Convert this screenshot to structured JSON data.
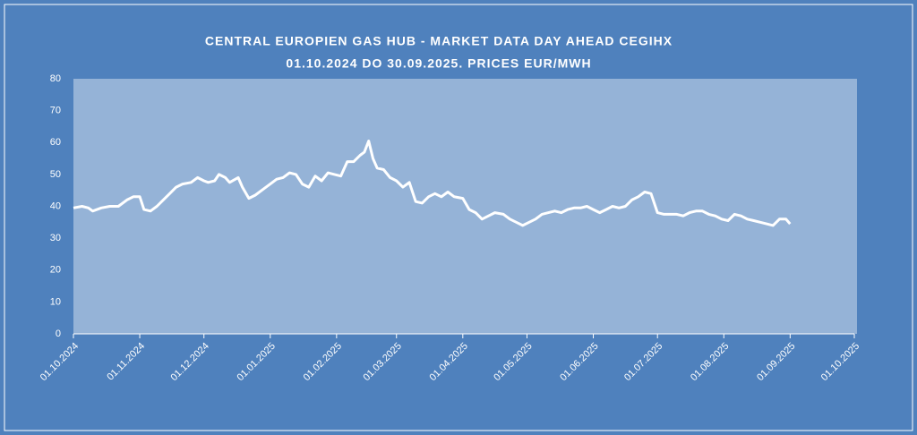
{
  "chart_data": {
    "type": "line",
    "title": "CENTRAL EUROPIEN GAS HUB - MARKET DATA DAY AHEAD CEGIHX",
    "subtitle": "01.10.2024 DO 30.09.2025. PRICES EUR/MWH",
    "series": [
      {
        "color": "#ffffff",
        "x": [
          "2024-10-01",
          "2024-10-05",
          "2024-10-08",
          "2024-10-10",
          "2024-10-14",
          "2024-10-18",
          "2024-10-22",
          "2024-10-26",
          "2024-10-29",
          "2024-11-01",
          "2024-11-03",
          "2024-11-06",
          "2024-11-09",
          "2024-11-12",
          "2024-11-15",
          "2024-11-18",
          "2024-11-21",
          "2024-11-25",
          "2024-11-28",
          "2024-12-01",
          "2024-12-03",
          "2024-12-06",
          "2024-12-08",
          "2024-12-11",
          "2024-12-13",
          "2024-12-17",
          "2024-12-19",
          "2024-12-22",
          "2024-12-25",
          "2024-12-28",
          "2025-01-01",
          "2025-01-04",
          "2025-01-07",
          "2025-01-10",
          "2025-01-13",
          "2025-01-16",
          "2025-01-19",
          "2025-01-22",
          "2025-01-25",
          "2025-01-28",
          "2025-01-31",
          "2025-02-03",
          "2025-02-06",
          "2025-02-09",
          "2025-02-12",
          "2025-02-14",
          "2025-02-16",
          "2025-02-18",
          "2025-02-20",
          "2025-02-23",
          "2025-02-26",
          "2025-03-01",
          "2025-03-04",
          "2025-03-07",
          "2025-03-10",
          "2025-03-13",
          "2025-03-16",
          "2025-03-19",
          "2025-03-22",
          "2025-03-25",
          "2025-03-28",
          "2025-04-01",
          "2025-04-04",
          "2025-04-07",
          "2025-04-10",
          "2025-04-13",
          "2025-04-16",
          "2025-04-20",
          "2025-04-23",
          "2025-04-26",
          "2025-04-29",
          "2025-05-02",
          "2025-05-05",
          "2025-05-08",
          "2025-05-11",
          "2025-05-14",
          "2025-05-17",
          "2025-05-20",
          "2025-05-23",
          "2025-05-26",
          "2025-05-29",
          "2025-06-01",
          "2025-06-04",
          "2025-06-07",
          "2025-06-10",
          "2025-06-13",
          "2025-06-16",
          "2025-06-19",
          "2025-06-22",
          "2025-06-25",
          "2025-06-28",
          "2025-07-01",
          "2025-07-04",
          "2025-07-07",
          "2025-07-10",
          "2025-07-13",
          "2025-07-16",
          "2025-07-19",
          "2025-07-22",
          "2025-07-25",
          "2025-07-28",
          "2025-07-31",
          "2025-08-03",
          "2025-08-06",
          "2025-08-09",
          "2025-08-12",
          "2025-08-15",
          "2025-08-18",
          "2025-08-21",
          "2025-08-24",
          "2025-08-27",
          "2025-08-30",
          "2025-09-01"
        ],
        "values": [
          39.5,
          40,
          39.5,
          38.5,
          39.5,
          40,
          40,
          42,
          43,
          43,
          39,
          38.5,
          40,
          42,
          44,
          46,
          47,
          47.5,
          49,
          48,
          47.5,
          48,
          50,
          49,
          47.5,
          49,
          46,
          42.5,
          43.5,
          45,
          47,
          48.5,
          49,
          50.5,
          50,
          47,
          46,
          49.5,
          48,
          50.5,
          50,
          49.5,
          54,
          54,
          56,
          57,
          60.5,
          55,
          52,
          51.5,
          49,
          48,
          46,
          47.5,
          41.5,
          41,
          43,
          44,
          43,
          44.5,
          43,
          42.5,
          39,
          38,
          36,
          37,
          38,
          37.5,
          36,
          35,
          34,
          35,
          36,
          37.5,
          38,
          38.5,
          38,
          39,
          39.5,
          39.5,
          40,
          39,
          38,
          39,
          40,
          39.5,
          40,
          42,
          43,
          44.5,
          44,
          38,
          37.5,
          37.5,
          37.5,
          37,
          38,
          38.5,
          38.5,
          37.5,
          37,
          36,
          35.5,
          37.5,
          37,
          36,
          35.5,
          35,
          34.5,
          34,
          36,
          36,
          34.5
        ]
      }
    ],
    "xlim": [
      "2024-10-01",
      "2025-10-01"
    ],
    "xticks": [
      {
        "value": "2024-10-01",
        "label": "01.10.2024"
      },
      {
        "value": "2024-11-01",
        "label": "01.11.2024"
      },
      {
        "value": "2024-12-01",
        "label": "01.12.2024"
      },
      {
        "value": "2025-01-01",
        "label": "01.01.2025"
      },
      {
        "value": "2025-02-01",
        "label": "01.02.2025"
      },
      {
        "value": "2025-03-01",
        "label": "01.03.2025"
      },
      {
        "value": "2025-04-01",
        "label": "01.04.2025"
      },
      {
        "value": "2025-05-01",
        "label": "01.05.2025"
      },
      {
        "value": "2025-06-01",
        "label": "01.06.2025"
      },
      {
        "value": "2025-07-01",
        "label": "01.07.2025"
      },
      {
        "value": "2025-08-01",
        "label": "01.08.2025"
      },
      {
        "value": "2025-09-01",
        "label": "01.09.2025"
      },
      {
        "value": "2025-10-01",
        "label": "01.10.2025"
      }
    ],
    "ylim": [
      0,
      80
    ],
    "yticks": [
      0,
      10,
      20,
      30,
      40,
      50,
      60,
      70,
      80
    ],
    "grid": false
  }
}
